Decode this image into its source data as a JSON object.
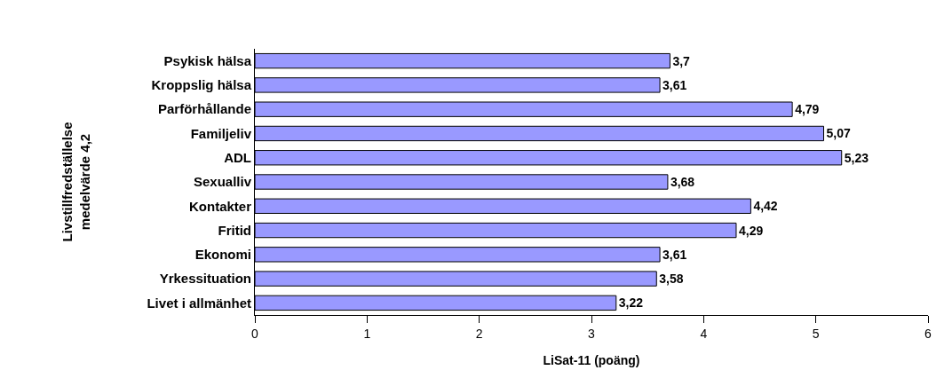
{
  "chart_data": {
    "type": "bar",
    "orientation": "horizontal",
    "categories": [
      "Psykisk hälsa",
      "Kroppslig hälsa",
      "Parförhållande",
      "Familjeliv",
      "ADL",
      "Sexualliv",
      "Kontakter",
      "Fritid",
      "Ekonomi",
      "Yrkessituation",
      "Livet i allmänhet"
    ],
    "values": [
      3.7,
      3.61,
      4.79,
      5.07,
      5.23,
      3.68,
      4.42,
      4.29,
      3.61,
      3.58,
      3.22
    ],
    "value_labels": [
      "3,7",
      "3,61",
      "4,79",
      "5,07",
      "5,23",
      "3,68",
      "4,42",
      "4,29",
      "3,61",
      "3,58",
      "3,22"
    ],
    "color": "#9999ff",
    "xlabel": "LiSat-11 (poäng)",
    "ylabel": "Livstillfredställelse\nmedelvärde 4,2",
    "xlim": [
      0,
      6
    ],
    "xticks": [
      0,
      1,
      2,
      3,
      4,
      5,
      6
    ],
    "legend": false
  }
}
